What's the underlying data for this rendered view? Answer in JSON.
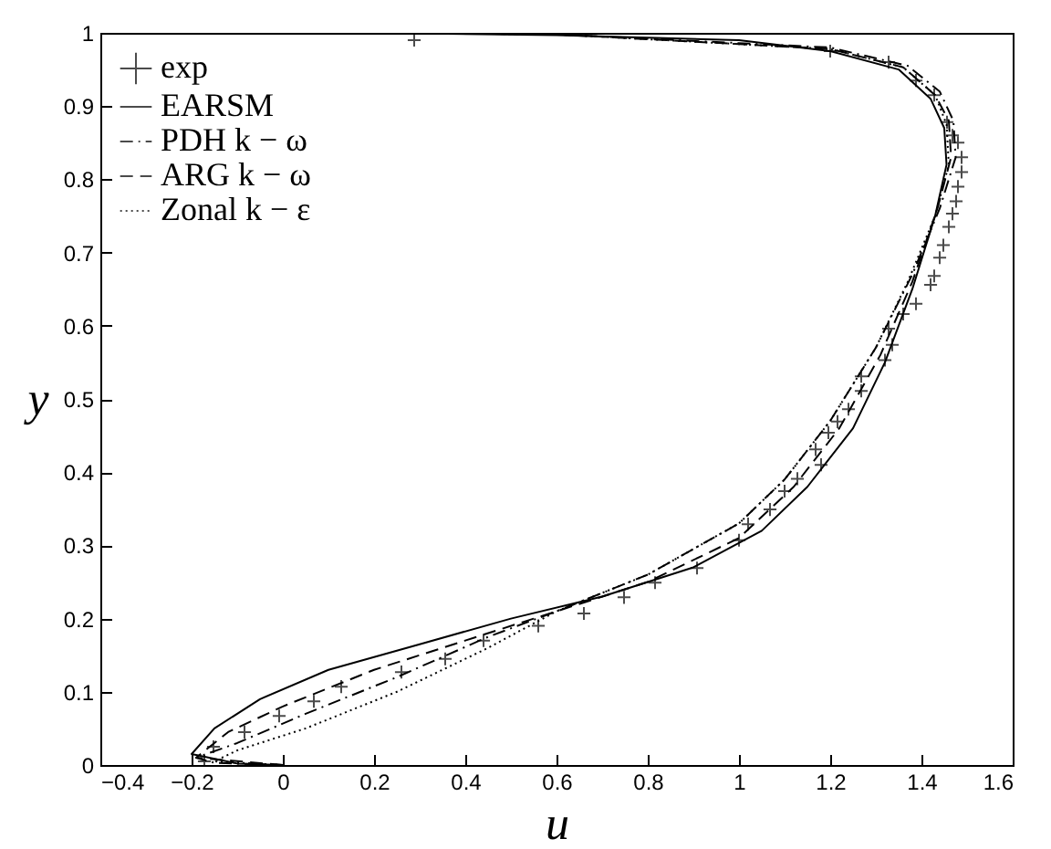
{
  "chart_data": {
    "type": "line",
    "xlabel": "u",
    "ylabel": "y",
    "xlim": [
      -0.4,
      1.6
    ],
    "ylim": [
      0,
      1
    ],
    "xticks": [
      -0.4,
      -0.2,
      0,
      0.2,
      0.4,
      0.6,
      0.8,
      1,
      1.2,
      1.4,
      1.6
    ],
    "yticks": [
      0,
      0.1,
      0.2,
      0.3,
      0.4,
      0.5,
      0.6,
      0.7,
      0.8,
      0.9,
      1
    ],
    "legend": "top left",
    "grid": false,
    "series": [
      {
        "name": "exp",
        "type": "scatter",
        "marker": "cross",
        "color": "#000000",
        "x": [
          0.288,
          1.2,
          1.328,
          1.388,
          1.428,
          1.456,
          1.468,
          1.48,
          1.488,
          1.488,
          1.48,
          1.476,
          1.468,
          1.46,
          1.448,
          1.44,
          1.428,
          1.42,
          1.388,
          1.36,
          1.328,
          1.336,
          1.32,
          1.268,
          1.268,
          1.24,
          1.216,
          1.196,
          1.18,
          1.168,
          1.128,
          1.1,
          1.068,
          1.02,
          1.0,
          0.908,
          0.816,
          0.748,
          0.66,
          0.56,
          0.44,
          0.356,
          0.26,
          0.128,
          0.068,
          -0.008,
          -0.084,
          -0.152,
          -0.172
        ],
        "values": [
          0.99,
          0.975,
          0.96,
          0.935,
          0.915,
          0.878,
          0.86,
          0.85,
          0.83,
          0.81,
          0.79,
          0.77,
          0.753,
          0.735,
          0.71,
          0.693,
          0.668,
          0.656,
          0.63,
          0.616,
          0.596,
          0.574,
          0.553,
          0.531,
          0.511,
          0.486,
          0.469,
          0.454,
          0.41,
          0.431,
          0.391,
          0.374,
          0.349,
          0.329,
          0.307,
          0.269,
          0.249,
          0.229,
          0.207,
          0.19,
          0.17,
          0.145,
          0.127,
          0.107,
          0.087,
          0.067,
          0.045,
          0.025,
          0.005
        ]
      },
      {
        "name": "EARSM",
        "type": "line",
        "line_style": "solid",
        "color": "#000000",
        "x": [
          0,
          -0.1,
          -0.2,
          -0.15,
          -0.05,
          0.1,
          0.3,
          0.5,
          0.7,
          0.9,
          1.05,
          1.15,
          1.25,
          1.32,
          1.38,
          1.43,
          1.455,
          1.45,
          1.42,
          1.35,
          1.2,
          1.0,
          0.6,
          0.2
        ],
        "values": [
          0,
          0.002,
          0.015,
          0.05,
          0.09,
          0.13,
          0.165,
          0.2,
          0.23,
          0.27,
          0.32,
          0.38,
          0.46,
          0.55,
          0.65,
          0.75,
          0.82,
          0.87,
          0.91,
          0.95,
          0.975,
          0.99,
          0.997,
          1
        ]
      },
      {
        "name": "PDH k − ω",
        "type": "line",
        "line_style": "dashdot",
        "color": "#000000",
        "x": [
          0,
          -0.15,
          -0.19,
          -0.1,
          0.05,
          0.25,
          0.45,
          0.6,
          0.8,
          1.0,
          1.1,
          1.2,
          1.3,
          1.38,
          1.44,
          1.475,
          1.47,
          1.44,
          1.37,
          1.2,
          0.6,
          0.2
        ],
        "values": [
          0,
          0.003,
          0.01,
          0.03,
          0.07,
          0.12,
          0.175,
          0.21,
          0.26,
          0.33,
          0.39,
          0.47,
          0.57,
          0.67,
          0.76,
          0.83,
          0.88,
          0.92,
          0.955,
          0.98,
          0.998,
          1
        ]
      },
      {
        "name": "ARG k − ω",
        "type": "line",
        "line_style": "dashed",
        "color": "#000000",
        "x": [
          0,
          -0.19,
          -0.12,
          0,
          0.2,
          0.4,
          0.6,
          0.8,
          1.0,
          1.12,
          1.22,
          1.31,
          1.38,
          1.435,
          1.465,
          1.46,
          1.43,
          1.36,
          1.2,
          0.6,
          0.2
        ],
        "values": [
          0,
          0.01,
          0.045,
          0.08,
          0.13,
          0.17,
          0.21,
          0.25,
          0.31,
          0.38,
          0.46,
          0.56,
          0.66,
          0.76,
          0.83,
          0.88,
          0.915,
          0.953,
          0.978,
          0.998,
          1
        ]
      },
      {
        "name": "Zonal k − ε",
        "type": "line",
        "line_style": "dotted",
        "color": "#000000",
        "x": [
          0,
          -0.15,
          -0.1,
          0.05,
          0.25,
          0.45,
          0.6,
          0.8,
          1.0,
          1.1,
          1.2,
          1.3,
          1.37,
          1.43,
          1.46,
          1.455,
          1.43,
          1.36,
          1.2,
          0.6,
          0.2
        ],
        "values": [
          0,
          0.005,
          0.02,
          0.05,
          0.1,
          0.16,
          0.21,
          0.26,
          0.33,
          0.39,
          0.47,
          0.57,
          0.66,
          0.75,
          0.82,
          0.875,
          0.915,
          0.953,
          0.978,
          0.998,
          1
        ]
      }
    ]
  }
}
